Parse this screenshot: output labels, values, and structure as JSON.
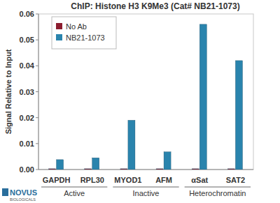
{
  "chart_data": {
    "type": "bar",
    "title": "ChIP: Histone H3 K9Me3 (Cat# NB21-1073)",
    "y_label": "Signal Relative to Input",
    "categories": [
      "GAPDH",
      "RPL30",
      "MYOD1",
      "AFM",
      "αSat",
      "SAT2"
    ],
    "category_groups": [
      {
        "label": "Active",
        "span": 2
      },
      {
        "label": "Inactive",
        "span": 2
      },
      {
        "label": "Heterochromatin",
        "span": 2
      }
    ],
    "series": [
      {
        "name": "No Ab",
        "color": "#8c1d2f",
        "values": [
          0.0003,
          0.0003,
          0.0003,
          0.0003,
          0.0003,
          0.0003
        ]
      },
      {
        "name": "NB21-1073",
        "color": "#2a84ad",
        "values": [
          0.0038,
          0.0045,
          0.019,
          0.0068,
          0.056,
          0.042
        ]
      }
    ],
    "ylim": [
      0,
      0.06
    ],
    "yticks": [
      {
        "value": 0,
        "label": "0.00"
      },
      {
        "value": 0.01,
        "label": "0.01"
      },
      {
        "value": 0.02,
        "label": "0.02"
      },
      {
        "value": 0.03,
        "label": "0.03"
      },
      {
        "value": 0.04,
        "label": "0.04"
      },
      {
        "value": 0.05,
        "label": "0.05"
      },
      {
        "value": 0.06,
        "label": "0.06"
      }
    ],
    "grid": false,
    "legend": "top-left",
    "annotations": [
      "NOVUS",
      "BIOLOGICALS"
    ]
  }
}
